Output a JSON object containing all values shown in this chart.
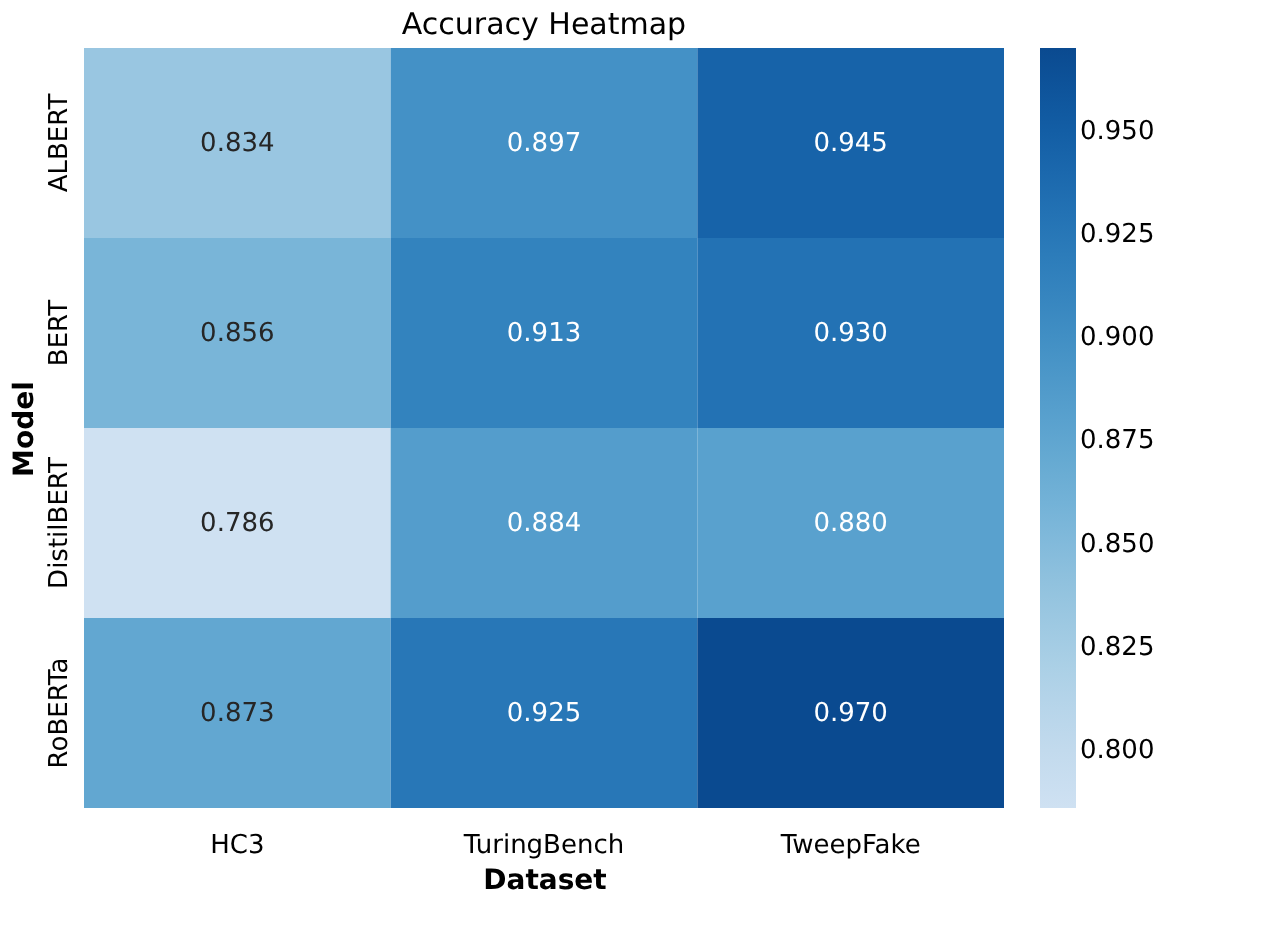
{
  "chart_data": {
    "type": "heatmap",
    "title": "Accuracy Heatmap",
    "xlabel": "Dataset",
    "ylabel": "Model",
    "categories": [
      "HC3",
      "TuringBench",
      "TweepFake"
    ],
    "y_categories": [
      "ALBERT",
      "BERT",
      "DistilBERT",
      "RoBERTa"
    ],
    "cells": [
      [
        0.834,
        0.897,
        0.945
      ],
      [
        0.856,
        0.913,
        0.93
      ],
      [
        0.786,
        0.884,
        0.88
      ],
      [
        0.873,
        0.925,
        0.97
      ]
    ],
    "cell_labels": [
      [
        "0.834",
        "0.897",
        "0.945"
      ],
      [
        "0.856",
        "0.913",
        "0.930"
      ],
      [
        "0.786",
        "0.884",
        "0.880"
      ],
      [
        "0.873",
        "0.925",
        "0.970"
      ]
    ],
    "clim": [
      0.786,
      0.97
    ],
    "cticks": [
      {
        "value": 0.8,
        "label": "0.800"
      },
      {
        "value": 0.825,
        "label": "0.825"
      },
      {
        "value": 0.85,
        "label": "0.850"
      },
      {
        "value": 0.875,
        "label": "0.875"
      },
      {
        "value": 0.9,
        "label": "0.900"
      },
      {
        "value": 0.925,
        "label": "0.925"
      },
      {
        "value": 0.95,
        "label": "0.950"
      }
    ],
    "grid": false
  }
}
